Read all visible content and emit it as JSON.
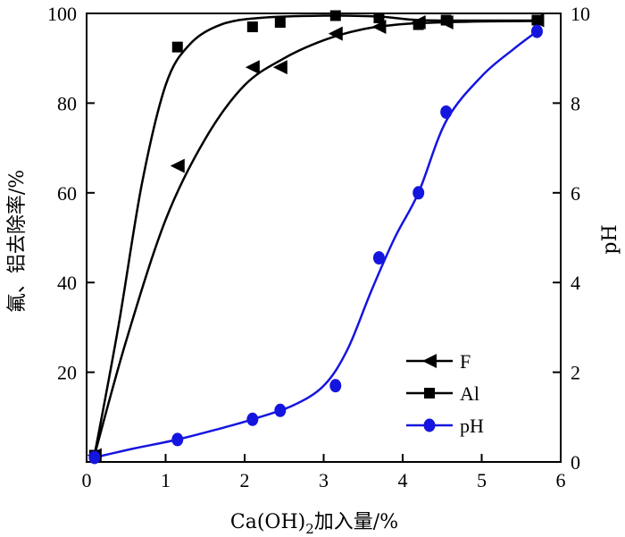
{
  "chart_data": {
    "type": "line",
    "xlabel": {
      "prefix": "Ca(OH)",
      "subscript": "2",
      "suffix": "加入量/%"
    },
    "ylabel_left": "氟、铝去除率/%",
    "ylabel_right": "pH",
    "xlim": [
      0,
      6
    ],
    "ylim_left": [
      0,
      100
    ],
    "ylim_right": [
      0,
      10
    ],
    "x_ticks": [
      0,
      1,
      2,
      3,
      4,
      5,
      6
    ],
    "y_left_ticks": [
      0,
      20,
      40,
      60,
      80,
      100
    ],
    "y_left_tick_labels": [
      "",
      "20",
      "40",
      "60",
      "80",
      "100"
    ],
    "y_right_ticks": [
      0,
      2,
      4,
      6,
      8,
      10
    ],
    "grid": false,
    "legend_position": "bottom-right",
    "series": [
      {
        "name": "F",
        "axis": "left",
        "marker": "triangle-left",
        "color": "#000000",
        "x": [
          0.1,
          1.15,
          2.1,
          2.45,
          3.15,
          3.7,
          4.2,
          4.55,
          5.7
        ],
        "y": [
          1.5,
          66,
          88,
          88,
          95.5,
          97,
          98,
          98,
          98.5
        ],
        "curve": [
          [
            0.1,
            1.5
          ],
          [
            0.5,
            27
          ],
          [
            1.0,
            54
          ],
          [
            1.5,
            72
          ],
          [
            2.0,
            84
          ],
          [
            2.5,
            90
          ],
          [
            3.0,
            94
          ],
          [
            3.5,
            96.5
          ],
          [
            4.0,
            97.6
          ],
          [
            4.5,
            98
          ],
          [
            5.0,
            98.2
          ],
          [
            5.7,
            98.3
          ]
        ]
      },
      {
        "name": "Al",
        "axis": "left",
        "marker": "square",
        "color": "#000000",
        "x": [
          0.1,
          1.15,
          2.1,
          2.45,
          3.15,
          3.7,
          4.2,
          4.55,
          5.7
        ],
        "y": [
          1.5,
          92.5,
          97,
          98,
          99.5,
          99,
          97.5,
          98.5,
          98.5
        ],
        "curve": [
          [
            0.1,
            1.5
          ],
          [
            0.4,
            30
          ],
          [
            0.7,
            62
          ],
          [
            1.0,
            84
          ],
          [
            1.3,
            93
          ],
          [
            1.7,
            97.5
          ],
          [
            2.2,
            99
          ],
          [
            3.0,
            99.5
          ],
          [
            3.7,
            99.3
          ],
          [
            4.2,
            98.5
          ],
          [
            5.0,
            98.4
          ],
          [
            5.7,
            98.4
          ]
        ]
      },
      {
        "name": "pH",
        "axis": "right",
        "marker": "circle",
        "color": "#1515e0",
        "x": [
          0.1,
          1.15,
          2.1,
          2.45,
          3.15,
          3.7,
          4.2,
          4.55,
          5.7
        ],
        "y": [
          0.1,
          0.5,
          0.95,
          1.15,
          1.7,
          4.55,
          6.0,
          7.8,
          9.6
        ],
        "curve": [
          [
            0.1,
            0.1
          ],
          [
            0.6,
            0.3
          ],
          [
            1.15,
            0.5
          ],
          [
            1.7,
            0.75
          ],
          [
            2.1,
            0.95
          ],
          [
            2.6,
            1.25
          ],
          [
            3.0,
            1.7
          ],
          [
            3.3,
            2.5
          ],
          [
            3.6,
            3.8
          ],
          [
            3.9,
            5.0
          ],
          [
            4.2,
            6.0
          ],
          [
            4.55,
            7.6
          ],
          [
            5.0,
            8.6
          ],
          [
            5.4,
            9.2
          ],
          [
            5.7,
            9.6
          ]
        ]
      }
    ]
  }
}
